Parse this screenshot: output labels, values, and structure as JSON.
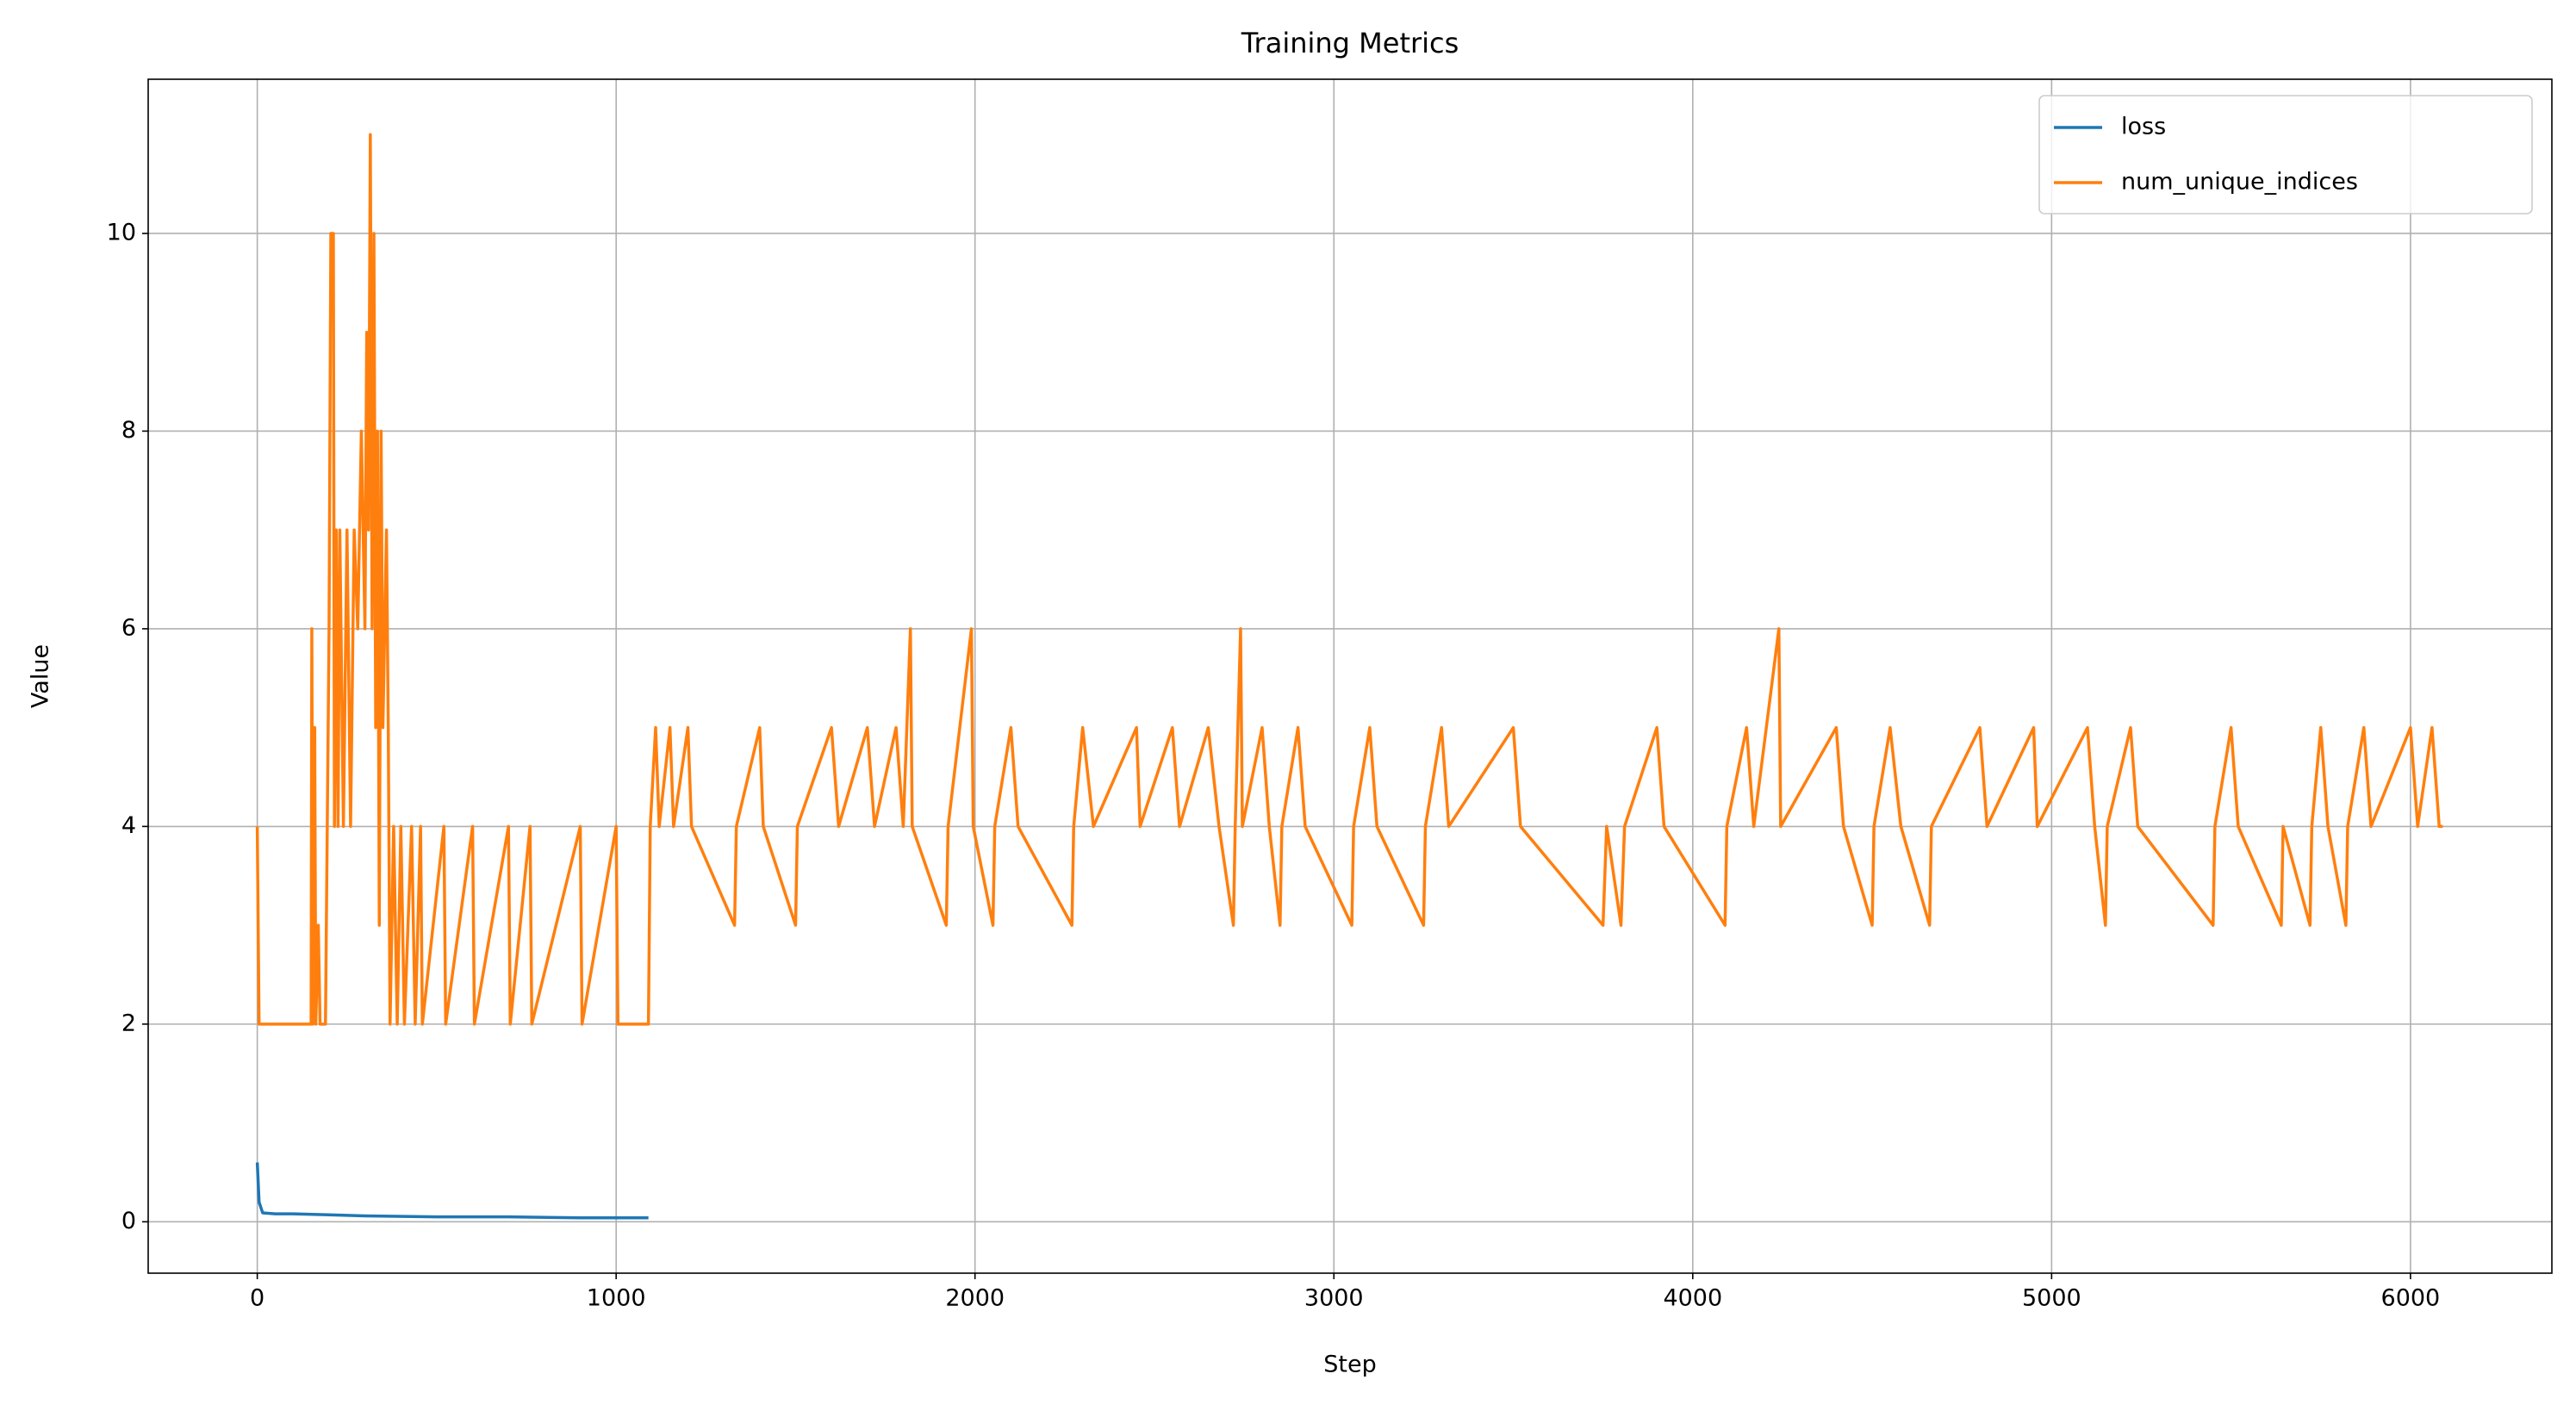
{
  "chart_data": {
    "type": "line",
    "title": "Training Metrics",
    "xlabel": "Step",
    "ylabel": "Value",
    "xlim": [
      -304,
      6394
    ],
    "ylim": [
      -0.52,
      11.56
    ],
    "xticks": [
      0,
      1000,
      2000,
      3000,
      4000,
      5000,
      6000
    ],
    "yticks": [
      0,
      2,
      4,
      6,
      8,
      10
    ],
    "grid": true,
    "legend": "upper right",
    "series": [
      {
        "name": "loss",
        "color": "#1f77b4",
        "x": [
          0,
          5,
          15,
          50,
          100,
          200,
          300,
          500,
          700,
          900,
          1090
        ],
        "values": [
          0.6,
          0.2,
          0.09,
          0.08,
          0.08,
          0.07,
          0.06,
          0.05,
          0.05,
          0.04,
          0.04
        ]
      },
      {
        "name": "num_unique_indices",
        "color": "#ff7f0e",
        "x": [
          0,
          5,
          150,
          152,
          155,
          160,
          163,
          170,
          175,
          190,
          200,
          205,
          212,
          215,
          220,
          225,
          230,
          240,
          250,
          260,
          270,
          280,
          290,
          300,
          305,
          310,
          315,
          320,
          325,
          330,
          335,
          340,
          345,
          350,
          360,
          365,
          370,
          380,
          390,
          400,
          410,
          430,
          440,
          455,
          460,
          520,
          525,
          600,
          605,
          700,
          705,
          760,
          765,
          900,
          905,
          1000,
          1005,
          1090,
          1095,
          1110,
          1120,
          1150,
          1160,
          1200,
          1210,
          1330,
          1335,
          1400,
          1410,
          1500,
          1505,
          1600,
          1620,
          1700,
          1720,
          1780,
          1800,
          1820,
          1825,
          1920,
          1925,
          1990,
          1995,
          2050,
          2055,
          2100,
          2120,
          2270,
          2275,
          2300,
          2330,
          2450,
          2460,
          2550,
          2570,
          2650,
          2680,
          2720,
          2725,
          2740,
          2745,
          2800,
          2820,
          2850,
          2855,
          2900,
          2920,
          3050,
          3055,
          3100,
          3120,
          3250,
          3255,
          3300,
          3320,
          3500,
          3520,
          3750,
          3760,
          3800,
          3810,
          3900,
          3920,
          4090,
          4095,
          4150,
          4170,
          4240,
          4245,
          4400,
          4420,
          4500,
          4505,
          4550,
          4580,
          4660,
          4665,
          4800,
          4820,
          4950,
          4960,
          5100,
          5120,
          5150,
          5155,
          5220,
          5240,
          5450,
          5455,
          5500,
          5520,
          5640,
          5645,
          5720,
          5725,
          5750,
          5770,
          5820,
          5825,
          5870,
          5890,
          6000,
          6020,
          6060,
          6080,
          6090
        ],
        "values": [
          4,
          2,
          2,
          6,
          2,
          5,
          2,
          3,
          2,
          2,
          6,
          10,
          10,
          4,
          7,
          4,
          7,
          4,
          7,
          4,
          7,
          6,
          8,
          6,
          9,
          7,
          11,
          6,
          10,
          5,
          8,
          3,
          8,
          5,
          7,
          5,
          2,
          4,
          2,
          4,
          2,
          4,
          2,
          4,
          2,
          4,
          2,
          4,
          2,
          4,
          2,
          4,
          2,
          4,
          2,
          4,
          2,
          2,
          4,
          5,
          4,
          5,
          4,
          5,
          4,
          3,
          4,
          5,
          4,
          3,
          4,
          5,
          4,
          5,
          4,
          5,
          4,
          6,
          4,
          3,
          4,
          6,
          4,
          3,
          4,
          5,
          4,
          3,
          4,
          5,
          4,
          5,
          4,
          5,
          4,
          5,
          4,
          3,
          4,
          6,
          4,
          5,
          4,
          3,
          4,
          5,
          4,
          3,
          4,
          5,
          4,
          3,
          4,
          5,
          4,
          5,
          4,
          3,
          4,
          3,
          4,
          5,
          4,
          3,
          4,
          5,
          4,
          6,
          4,
          5,
          4,
          3,
          4,
          5,
          4,
          3,
          4,
          5,
          4,
          5,
          4,
          5,
          4,
          3,
          4,
          5,
          4,
          3,
          4,
          5,
          4,
          3,
          4,
          3,
          4,
          5,
          4,
          3,
          4,
          5,
          4,
          5,
          4,
          5,
          4,
          4
        ]
      }
    ]
  }
}
